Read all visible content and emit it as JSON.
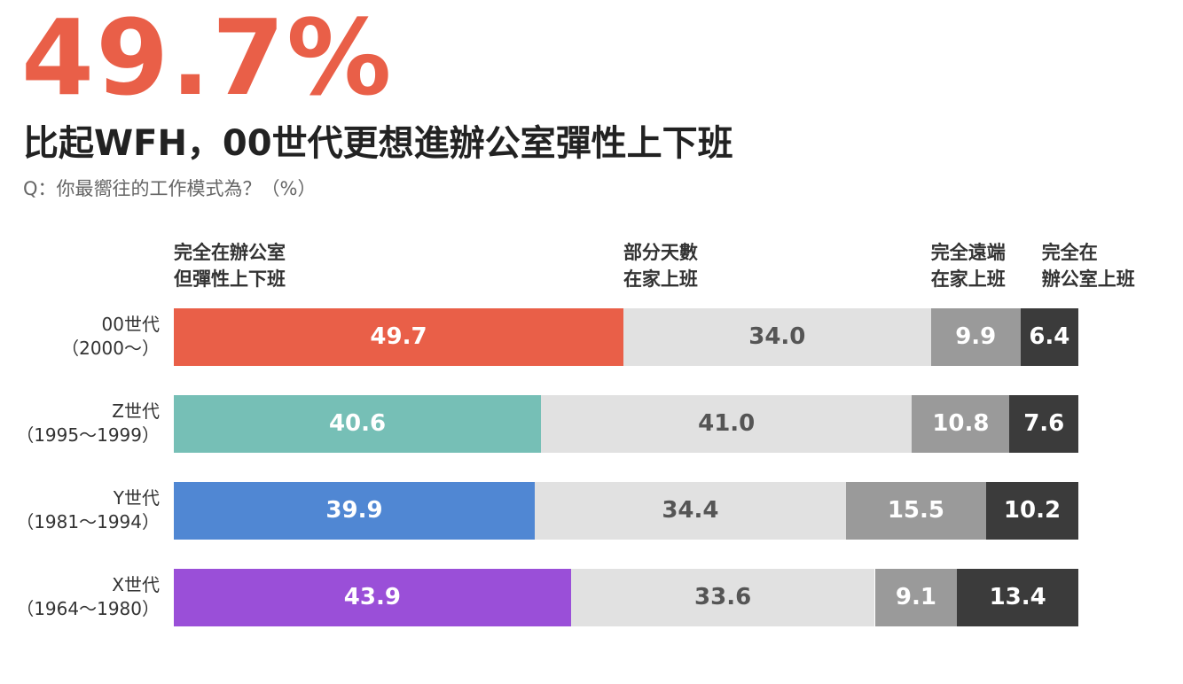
{
  "chart_data": {
    "type": "stacked-bar-horizontal",
    "headline": "49.7%",
    "title": "比起WFH，00世代更想進辦公室彈性上下班",
    "subtitle": "Q：你最嚮往的工作模式為？（%）",
    "categories": [
      "00世代\n（2000～）",
      "Z世代\n（1995～1999）",
      "Y世代\n（1981～1994）",
      "X世代\n（1964～1980）"
    ],
    "xlim": [
      0,
      100
    ],
    "series": [
      {
        "name": "完全在辦公室\n但彈性上下班",
        "colors": [
          "#e95f48",
          "#76bfb6",
          "#5087d3",
          "#9a4fd8"
        ],
        "label_color": "#ffffff",
        "values": [
          49.7,
          40.6,
          39.9,
          43.9
        ],
        "value_labels": [
          "49.7",
          "40.6",
          "39.9",
          "43.9"
        ]
      },
      {
        "name": "部分天數\n在家上班",
        "color": "#e1e1e1",
        "label_color": "#555555",
        "values": [
          34,
          41,
          34.4,
          33.6
        ],
        "value_labels": [
          "34.0",
          "41.0",
          "34.4",
          "33.6"
        ]
      },
      {
        "name": "完全遠端\n在家上班",
        "color": "#9a9a9a",
        "label_color": "#ffffff",
        "values": [
          9.9,
          10.8,
          15.5,
          9.1
        ],
        "value_labels": [
          "9.9",
          "10.8",
          "15.5",
          "9.1"
        ]
      },
      {
        "name": "完全在\n辦公室上班",
        "color": "#3b3b3b",
        "label_color": "#ffffff",
        "values": [
          6.4,
          7.6,
          10.2,
          13.4
        ],
        "value_labels": [
          "6.4",
          "7.6",
          "10.2",
          "13.4"
        ]
      }
    ]
  }
}
